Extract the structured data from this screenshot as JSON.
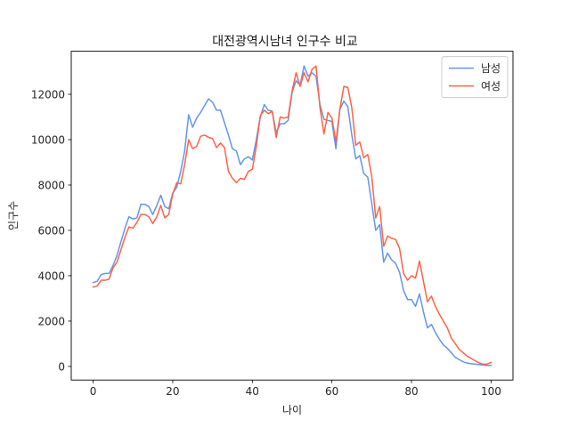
{
  "chart_data": {
    "type": "line",
    "title": "대전광역시남녀 인구수 비교",
    "xlabel": "나이",
    "ylabel": "인구수",
    "xlim": [
      -5.5,
      105.5
    ],
    "ylim": [
      -600,
      13900
    ],
    "xticks": [
      0,
      20,
      40,
      60,
      80,
      100
    ],
    "yticks": [
      0,
      2000,
      4000,
      6000,
      8000,
      10000,
      12000
    ],
    "grid": false,
    "legend": "top-right",
    "x": [
      0,
      1,
      2,
      3,
      4,
      5,
      6,
      7,
      8,
      9,
      10,
      11,
      12,
      13,
      14,
      15,
      16,
      17,
      18,
      19,
      20,
      21,
      22,
      23,
      24,
      25,
      26,
      27,
      28,
      29,
      30,
      31,
      32,
      33,
      34,
      35,
      36,
      37,
      38,
      39,
      40,
      41,
      42,
      43,
      44,
      45,
      46,
      47,
      48,
      49,
      50,
      51,
      52,
      53,
      54,
      55,
      56,
      57,
      58,
      59,
      60,
      61,
      62,
      63,
      64,
      65,
      66,
      67,
      68,
      69,
      70,
      71,
      72,
      73,
      74,
      75,
      76,
      77,
      78,
      79,
      80,
      81,
      82,
      83,
      84,
      85,
      86,
      87,
      88,
      89,
      90,
      91,
      92,
      93,
      94,
      95,
      96,
      97,
      98,
      99,
      100
    ],
    "series": [
      {
        "name": "남성",
        "color": "#6495ED",
        "values": [
          3700,
          3750,
          4050,
          4100,
          4100,
          4450,
          4900,
          5500,
          6100,
          6600,
          6500,
          6550,
          7150,
          7150,
          7050,
          6700,
          7100,
          7550,
          7050,
          6950,
          7650,
          7900,
          8600,
          9500,
          11100,
          10550,
          10950,
          11200,
          11500,
          11800,
          11650,
          11300,
          11300,
          10750,
          10200,
          9600,
          9500,
          8900,
          9150,
          9250,
          9100,
          10000,
          11000,
          11550,
          11300,
          11250,
          10300,
          10700,
          10700,
          10850,
          12100,
          12600,
          12400,
          13250,
          12800,
          12950,
          12800,
          11550,
          10900,
          10850,
          10800,
          9600,
          11350,
          11700,
          11450,
          10200,
          9150,
          9300,
          8500,
          8350,
          7200,
          6000,
          6250,
          4600,
          5000,
          4700,
          4550,
          4150,
          3350,
          2950,
          2950,
          2650,
          3200,
          2400,
          1700,
          1850,
          1500,
          1200,
          950,
          800,
          600,
          400,
          300,
          200,
          150,
          120,
          100,
          80,
          60,
          40,
          50
        ]
      },
      {
        "name": "여성",
        "color": "#FF6347",
        "values": [
          3500,
          3550,
          3800,
          3800,
          3850,
          4350,
          4600,
          5150,
          5700,
          6150,
          6100,
          6350,
          6700,
          6700,
          6600,
          6300,
          6600,
          7100,
          6550,
          6700,
          7600,
          8100,
          8050,
          8900,
          10000,
          9600,
          9700,
          10150,
          10200,
          10100,
          10050,
          9650,
          9850,
          9650,
          8600,
          8300,
          8100,
          8300,
          8250,
          8600,
          8700,
          9700,
          11050,
          11300,
          11150,
          11250,
          10100,
          11000,
          10950,
          11000,
          12150,
          12950,
          12350,
          12950,
          12550,
          13100,
          13250,
          11400,
          10250,
          11200,
          10950,
          9900,
          11350,
          12350,
          12300,
          11400,
          9750,
          9900,
          9200,
          9350,
          8400,
          6550,
          7050,
          5300,
          5750,
          5650,
          5600,
          5200,
          4100,
          3800,
          4000,
          3900,
          4650,
          3750,
          2850,
          3100,
          2650,
          2300,
          2000,
          1700,
          1250,
          1000,
          750,
          600,
          450,
          350,
          250,
          150,
          100,
          100,
          180
        ]
      }
    ]
  }
}
